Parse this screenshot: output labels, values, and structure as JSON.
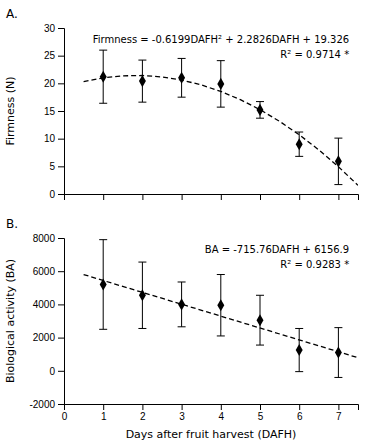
{
  "chart_data": [
    {
      "type": "scatter",
      "title": "A.",
      "ylabel": "Firmness (N)",
      "xlim": [
        0,
        7.5
      ],
      "xticks": [
        0,
        1,
        2,
        3,
        4,
        5,
        6,
        7
      ],
      "ylim": [
        0,
        30
      ],
      "yticks": [
        0,
        5,
        10,
        15,
        20,
        25,
        30
      ],
      "grid": false,
      "tick_labels": "y",
      "annotations": [
        "Firmness = -0.6199DAFH² + 2.2826DAFH + 19.326",
        "R² = 0.9714 *"
      ],
      "series": [
        {
          "type": "line",
          "line_style": "dashed",
          "color": "black",
          "x": [
            0.5,
            1,
            1.5,
            2,
            2.5,
            3,
            3.5,
            4,
            4.5,
            5,
            5.5,
            6,
            6.5,
            7,
            7.5
          ],
          "values": [
            20.312325,
            20.9887,
            21.355125,
            21.4116,
            21.158125,
            20.5947,
            19.721325,
            18.538,
            17.044725,
            15.2415,
            13.128325,
            10.7052,
            7.972125,
            4.9291,
            1.576125
          ]
        },
        {
          "type": "scatter",
          "marker": "diamond",
          "color": "black",
          "x": [
            1,
            2,
            3,
            4,
            5,
            6,
            7
          ],
          "values": [
            21.2,
            20.4,
            21.0,
            19.9,
            15.2,
            9.0,
            5.9
          ],
          "errors": [
            4.8,
            3.8,
            3.5,
            4.2,
            1.5,
            2.2,
            4.2
          ]
        }
      ]
    },
    {
      "type": "scatter",
      "title": "B.",
      "ylabel": "Biological activity (BA)",
      "xlabel": "Days after fruit harvest (DAFH)",
      "xlim": [
        0,
        7.5
      ],
      "xticks": [
        0,
        1,
        2,
        3,
        4,
        5,
        6,
        7
      ],
      "ylim": [
        -2000,
        8000
      ],
      "yticks": [
        -2000,
        0,
        2000,
        4000,
        6000,
        8000
      ],
      "grid": false,
      "annotations": [
        "BA = -715.76DAFH + 6156.9",
        "R² = 0.9283 *"
      ],
      "series": [
        {
          "type": "line",
          "line_style": "dashed",
          "color": "black",
          "x": [
            0.5,
            7.5
          ],
          "values": [
            5799.02,
            788.7
          ]
        },
        {
          "type": "scatter",
          "marker": "diamond",
          "color": "black",
          "x": [
            1,
            2,
            3,
            4,
            5,
            6,
            7
          ],
          "values": [
            5200,
            4550,
            4000,
            3950,
            3050,
            1250,
            1100
          ],
          "errors": [
            2700,
            2000,
            1350,
            1850,
            1500,
            1300,
            1500
          ]
        }
      ]
    }
  ]
}
